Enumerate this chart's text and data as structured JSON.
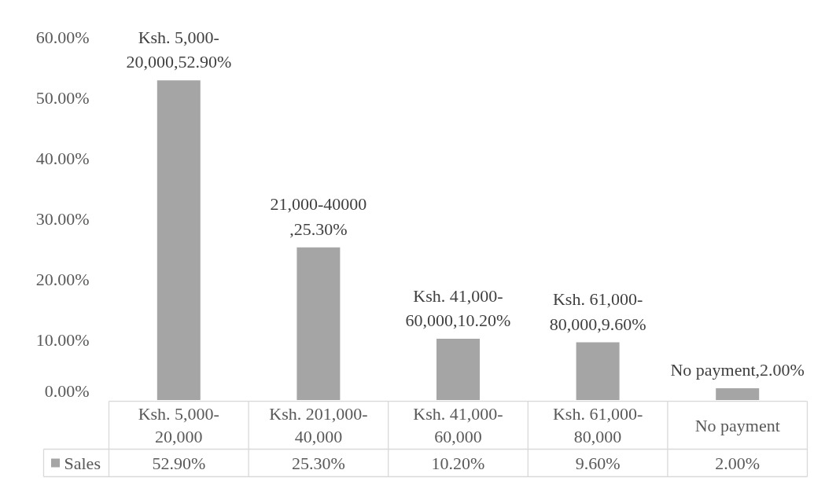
{
  "chart_data": {
    "type": "bar",
    "categories": [
      "Ksh. 5,000-20,000",
      "Ksh. 201,000-40,000",
      "Ksh. 41,000-60,000",
      "Ksh. 61,000-80,000",
      "No payment"
    ],
    "series": [
      {
        "name": "Sales",
        "color": "#a5a5a5",
        "values": [
          52.9,
          25.3,
          10.2,
          9.6,
          2.0
        ],
        "value_labels": [
          "52.90%",
          "25.30%",
          "10.20%",
          "9.60%",
          "2.00%"
        ]
      }
    ],
    "ylim": [
      0,
      60
    ],
    "yticks": [
      {
        "value": 0,
        "label": "0.00%"
      },
      {
        "value": 10,
        "label": "10.00%"
      },
      {
        "value": 20,
        "label": "20.00%"
      },
      {
        "value": 30,
        "label": "30.00%"
      },
      {
        "value": 40,
        "label": "40.00%"
      },
      {
        "value": 50,
        "label": "50.00%"
      },
      {
        "value": 60,
        "label": "60.00%"
      }
    ],
    "legend": "bottom",
    "annotations": [
      "Ksh. 5,000-20,000,52.90%",
      "21,000-40000 ,25.30%",
      "Ksh. 41,000-60,000,10.20%",
      "Ksh. 61,000-80,000,9.60%",
      "No payment,2.00%"
    ]
  }
}
